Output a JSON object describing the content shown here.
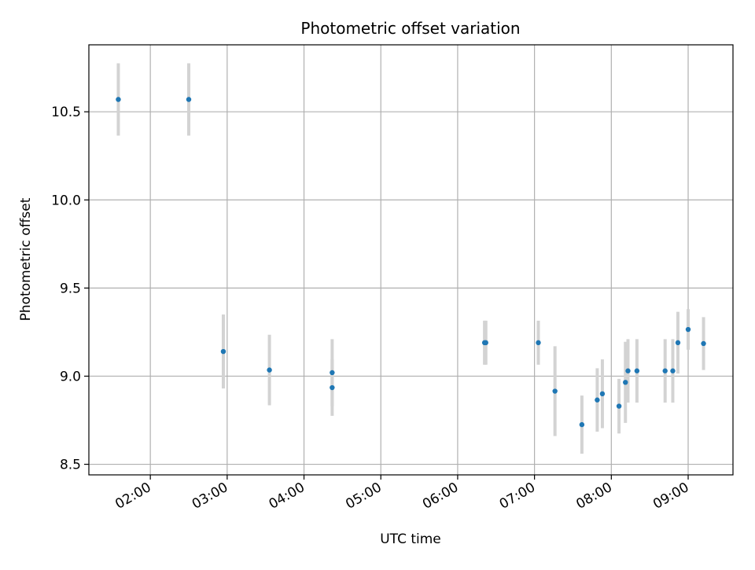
{
  "chart_data": {
    "type": "scatter",
    "title": "Photometric offset variation",
    "xlabel": "UTC time",
    "ylabel": "Photometric offset",
    "x_ticks": [
      "02:00",
      "03:00",
      "04:00",
      "05:00",
      "06:00",
      "07:00",
      "08:00",
      "09:00"
    ],
    "y_ticks": [
      "8.5",
      "9.0",
      "9.5",
      "10.0",
      "10.5"
    ],
    "xlim": [
      "01:12",
      "09:35"
    ],
    "ylim": [
      8.44,
      10.88
    ],
    "grid": true,
    "colors": {
      "points": "#1f77b4",
      "errorbars": "#d3d3d3",
      "grid": "#b0b0b0"
    },
    "points": [
      {
        "x": "01:35",
        "y": 10.57,
        "err": 0.205
      },
      {
        "x": "02:30",
        "y": 10.57,
        "err": 0.205
      },
      {
        "x": "02:57",
        "y": 9.14,
        "err": 0.21
      },
      {
        "x": "03:33",
        "y": 9.035,
        "err": 0.2
      },
      {
        "x": "04:22",
        "y": 9.02,
        "err": 0.19
      },
      {
        "x": "04:22",
        "y": 8.935,
        "err": 0.16
      },
      {
        "x": "06:21",
        "y": 9.19,
        "err": 0.125
      },
      {
        "x": "06:22",
        "y": 9.19,
        "err": 0.125
      },
      {
        "x": "07:03",
        "y": 9.19,
        "err": 0.125
      },
      {
        "x": "07:16",
        "y": 8.915,
        "err": 0.255
      },
      {
        "x": "07:37",
        "y": 8.725,
        "err": 0.165
      },
      {
        "x": "07:49",
        "y": 8.865,
        "err": 0.18
      },
      {
        "x": "07:53",
        "y": 8.9,
        "err": 0.195
      },
      {
        "x": "08:06",
        "y": 8.83,
        "err": 0.155
      },
      {
        "x": "08:11",
        "y": 8.965,
        "err": 0.23
      },
      {
        "x": "08:13",
        "y": 9.03,
        "err": 0.18
      },
      {
        "x": "08:20",
        "y": 9.03,
        "err": 0.18
      },
      {
        "x": "08:42",
        "y": 9.03,
        "err": 0.18
      },
      {
        "x": "08:48",
        "y": 9.03,
        "err": 0.18
      },
      {
        "x": "08:52",
        "y": 9.19,
        "err": 0.175
      },
      {
        "x": "09:00",
        "y": 9.265,
        "err": 0.115
      },
      {
        "x": "09:12",
        "y": 9.185,
        "err": 0.15
      }
    ]
  }
}
